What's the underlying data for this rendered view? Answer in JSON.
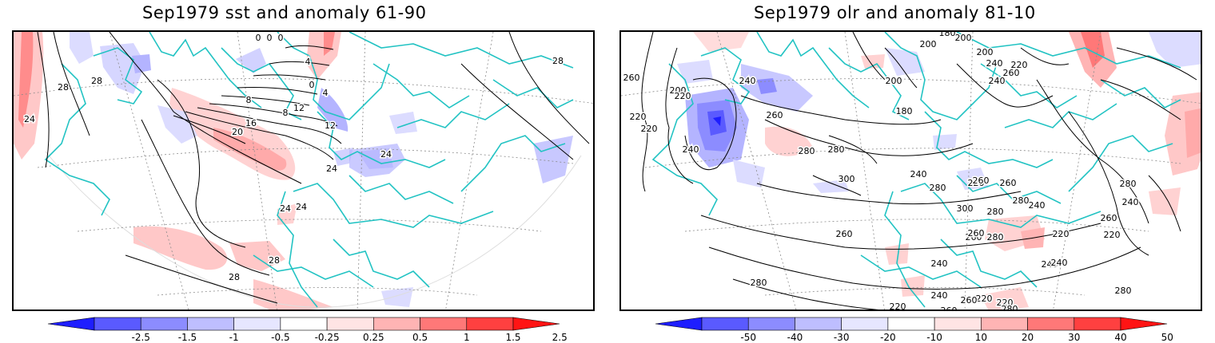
{
  "panels": [
    {
      "id": "sst",
      "title": "Sep1979 sst and anomaly 61-90",
      "contour_labels": [
        "28",
        "28",
        "24",
        "0",
        "0",
        "0",
        "0",
        "4",
        "4",
        "8",
        "8",
        "12",
        "12",
        "16",
        "20",
        "24",
        "24",
        "24",
        "24",
        "28",
        "28",
        "28"
      ],
      "colorbar": {
        "labels": [
          "-2.5",
          "-1.5",
          "-1",
          "-0.5",
          "-0.25",
          "0.25",
          "0.5",
          "1",
          "1.5",
          "2.5"
        ],
        "colors": [
          "#1e1eff",
          "#5a5aff",
          "#8c8cff",
          "#bebeff",
          "#e6e6ff",
          "#ffffff",
          "#ffe4e4",
          "#ffb4b4",
          "#ff7878",
          "#ff4040",
          "#ff1414"
        ]
      }
    },
    {
      "id": "olr",
      "title": "Sep1979 olr and anomaly 81-10",
      "contour_labels": [
        "200",
        "200",
        "180",
        "180",
        "200",
        "200",
        "240",
        "220",
        "260",
        "240",
        "260",
        "220",
        "200",
        "220",
        "220",
        "240",
        "260",
        "240",
        "280",
        "280",
        "300",
        "240",
        "220",
        "260",
        "280",
        "300",
        "260",
        "240",
        "260",
        "280",
        "280",
        "220",
        "260",
        "280",
        "240",
        "260",
        "220",
        "240",
        "280",
        "240",
        "220",
        "220",
        "220",
        "260",
        "280",
        "280",
        "260",
        "240",
        "240",
        "280",
        "260"
      ],
      "colorbar": {
        "labels": [
          "-50",
          "-40",
          "-30",
          "-20",
          "-10",
          "10",
          "20",
          "30",
          "40",
          "50"
        ],
        "colors": [
          "#1e1eff",
          "#5a5aff",
          "#8c8cff",
          "#bebeff",
          "#e6e6ff",
          "#ffffff",
          "#ffe4e4",
          "#ffb4b4",
          "#ff7878",
          "#ff4040",
          "#ff1414"
        ]
      }
    }
  ],
  "colors": {
    "coastline": "#22c3c3",
    "contour": "#000000",
    "grid": "#888888"
  }
}
